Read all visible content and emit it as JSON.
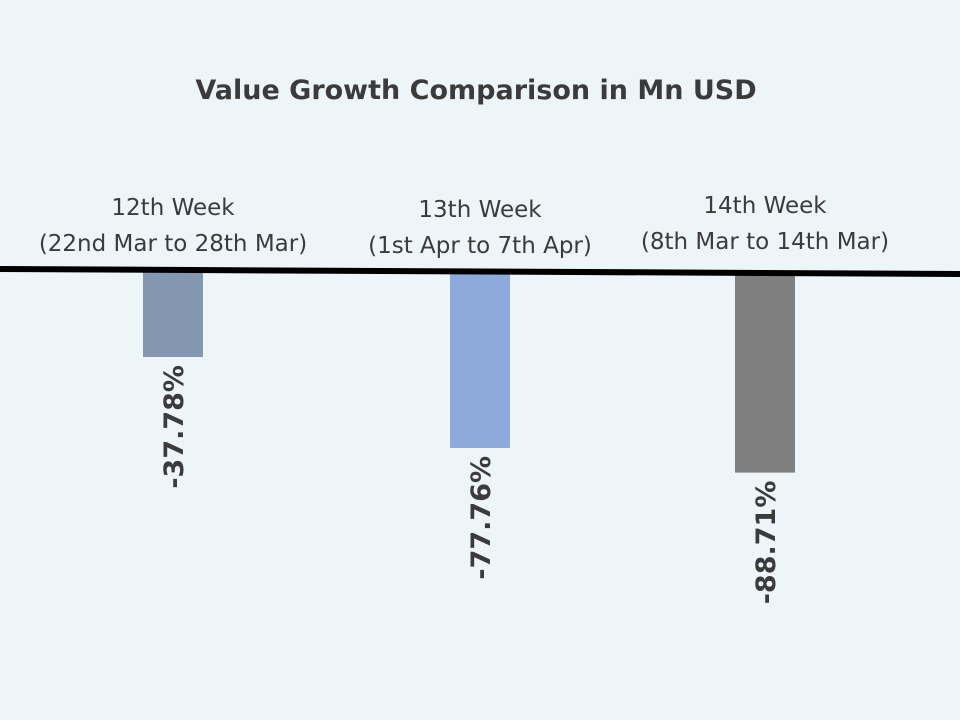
{
  "chart_data": {
    "type": "bar",
    "title": "Value Growth Comparison  in Mn USD",
    "categories": [
      {
        "line1": "12th Week",
        "line2": "(22nd Mar to 28th Mar)"
      },
      {
        "line1": "13th Week",
        "line2": "(1st Apr to 7th Apr)"
      },
      {
        "line1": "14th Week",
        "line2": "(8th Mar to 14th Mar)"
      }
    ],
    "values": [
      -37.78,
      -77.76,
      -88.71
    ],
    "value_labels": [
      "-37.78%",
      "-77.76%",
      "-88.71%"
    ],
    "colors": [
      "#8497b0",
      "#8eaadb",
      "#7f7f7f"
    ],
    "ylim": [
      -100,
      0
    ],
    "grid": false,
    "legend": "none"
  }
}
